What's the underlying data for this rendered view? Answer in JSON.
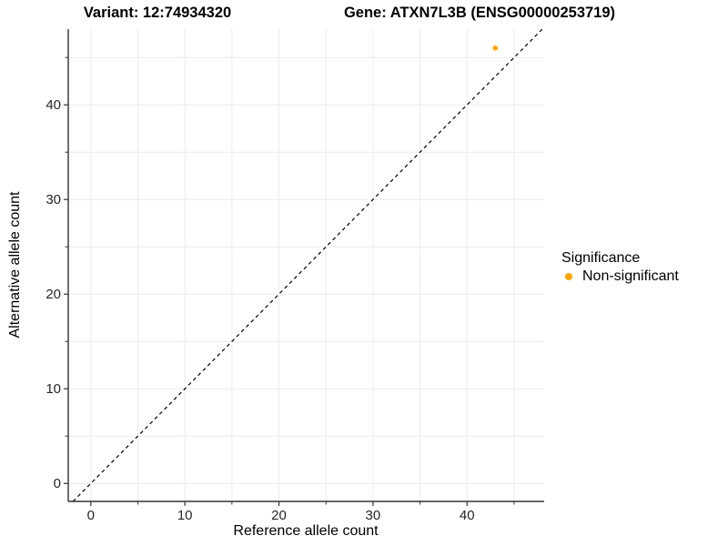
{
  "header": {
    "variant_title": "Variant: 12:74934320",
    "gene_title": "Gene: ATXN7L3B (ENSG00000253719)"
  },
  "chart_data": {
    "type": "scatter",
    "title_left": "Variant: 12:74934320",
    "title_right": "Gene: ATXN7L3B (ENSG00000253719)",
    "xlabel": "Reference allele count",
    "ylabel": "Alternative allele count",
    "x_range": [
      -2.4,
      48.2
    ],
    "y_range": [
      -1.9,
      48.0
    ],
    "x_major_ticks": [
      0,
      10,
      20,
      30,
      40
    ],
    "x_minor_ticks": [
      5,
      15,
      25,
      35,
      45
    ],
    "y_major_ticks": [
      0,
      10,
      20,
      30,
      40
    ],
    "y_minor_ticks": [
      5,
      15,
      25,
      35,
      45
    ],
    "grid": true,
    "gridlines_every": 5,
    "identity_line": {
      "style": "dashed",
      "slope": 1,
      "intercept": 0
    },
    "points": [
      {
        "x": 43,
        "y": 46,
        "series": "Non-significant"
      }
    ],
    "legend": {
      "title": "Significance",
      "position": "right",
      "items": [
        {
          "label": "Non-significant",
          "color": "#FFA500"
        }
      ]
    },
    "colors": {
      "point": "#FFA500",
      "grid": "#ECECEC",
      "axis": "#333333",
      "identity_line": "#000000",
      "background": "#FFFFFF"
    }
  }
}
